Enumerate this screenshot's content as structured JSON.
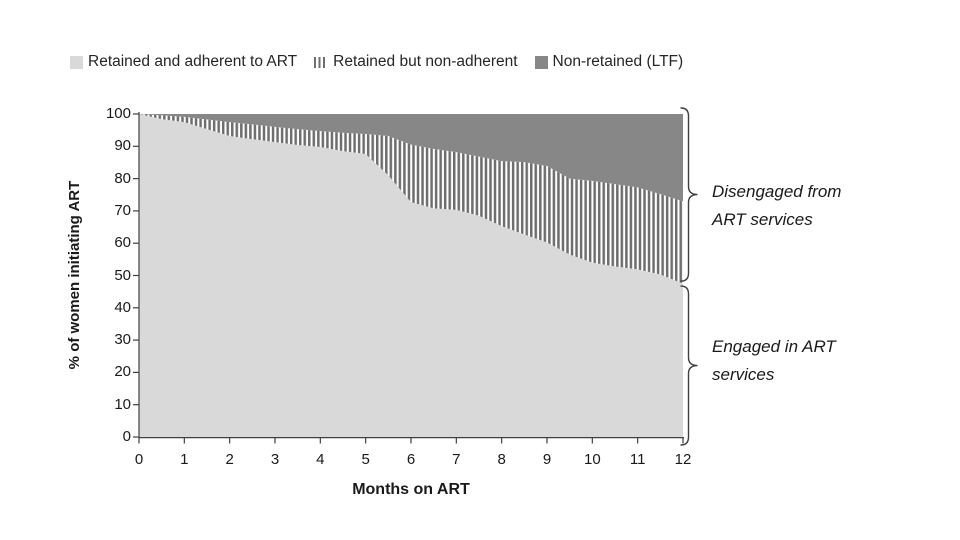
{
  "legend": {
    "items": [
      {
        "label": "Retained and adherent to ART",
        "swatch": "light-gray-square"
      },
      {
        "label": "Retained but non-adherent",
        "swatch": "vertical-stripes"
      },
      {
        "label": "Non-retained (LTF)",
        "swatch": "dark-gray-square"
      }
    ]
  },
  "axes": {
    "y_label": "% of women initiating ART",
    "x_label": "Months on ART",
    "y_ticks": [
      0,
      10,
      20,
      30,
      40,
      50,
      60,
      70,
      80,
      90,
      100
    ],
    "x_ticks": [
      0,
      1,
      2,
      3,
      4,
      5,
      6,
      7,
      8,
      9,
      10,
      11,
      12
    ]
  },
  "annotations": [
    {
      "text": "Disengaged from ART services"
    },
    {
      "text": "Engaged in ART services"
    }
  ],
  "colors": {
    "adherent_area": "#d9d9d9",
    "nonadherent_stripe": "#6e6e6e",
    "stripe_background": "#ffffff",
    "ltf_area": "#878787",
    "axis": "#404040",
    "bracket": "#3f3f3f",
    "text": "#262626"
  },
  "chart_data": {
    "type": "area",
    "stacked": true,
    "title": "",
    "xlabel": "Months on ART",
    "ylabel": "% of women initiating ART",
    "xlim": [
      0,
      12
    ],
    "ylim": [
      0,
      100
    ],
    "grid": false,
    "legend_position": "top",
    "x": [
      0,
      0.5,
      1,
      1.5,
      2,
      2.5,
      3,
      3.5,
      4,
      4.5,
      5,
      5.5,
      6,
      6.5,
      7,
      7.5,
      8,
      8.5,
      9,
      9.5,
      10,
      10.5,
      11,
      11.5,
      12
    ],
    "series": [
      {
        "name": "Retained and adherent to ART",
        "style": "solid-light-gray",
        "values": [
          100,
          98.4,
          97.5,
          95.3,
          93.2,
          92.2,
          91.3,
          90.4,
          89.8,
          88.5,
          87.6,
          81.0,
          72.7,
          70.8,
          70.3,
          68.5,
          65.3,
          62.7,
          60.2,
          56.5,
          54.0,
          52.8,
          51.9,
          50.3,
          47.5
        ]
      },
      {
        "name": "Retained but non-adherent",
        "style": "vertical-stripes",
        "values": [
          0,
          1.2,
          1.6,
          3.0,
          4.3,
          4.6,
          4.7,
          4.9,
          4.9,
          5.7,
          6.2,
          12.2,
          17.8,
          18.4,
          17.9,
          18.3,
          20.1,
          22.4,
          23.7,
          23.5,
          25.3,
          25.5,
          25.4,
          24.9,
          25.5
        ]
      },
      {
        "name": "Non-retained (LTF)",
        "style": "solid-dark-gray",
        "values": [
          0,
          0.4,
          0.9,
          1.7,
          2.5,
          3.2,
          4.0,
          4.7,
          5.3,
          5.8,
          6.2,
          6.8,
          9.5,
          10.8,
          11.8,
          13.2,
          14.6,
          14.9,
          16.1,
          20.0,
          20.7,
          21.7,
          22.7,
          24.8,
          27.0
        ]
      }
    ]
  }
}
